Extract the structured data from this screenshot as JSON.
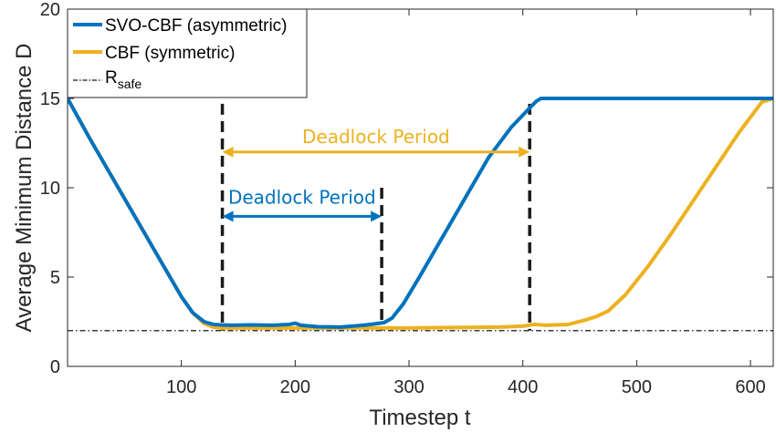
{
  "chart_data": {
    "type": "line",
    "xlabel": "Timestep t",
    "ylabel": "Average Minimum Distance D",
    "xlim": [
      0,
      620
    ],
    "ylim": [
      0,
      20
    ],
    "xticks": [
      100,
      200,
      300,
      400,
      500,
      600
    ],
    "yticks": [
      0,
      5,
      10,
      15,
      20
    ],
    "grid": false,
    "legend_position": "top-left",
    "colors": {
      "svo": "#0072BD",
      "cbf": "#EDB120",
      "rsafe": "#3a3a3a",
      "markers": "#1a1a1a"
    },
    "series": [
      {
        "name": "SVO-CBF (asymmetric)",
        "x": [
          0,
          20,
          40,
          60,
          80,
          100,
          110,
          120,
          128,
          135,
          145,
          160,
          180,
          195,
          200,
          205,
          220,
          240,
          260,
          270,
          278,
          285,
          295,
          310,
          330,
          350,
          370,
          390,
          405,
          412,
          416,
          420,
          440,
          500,
          560,
          600,
          620
        ],
        "y": [
          15,
          12.7,
          10.5,
          8.3,
          6.1,
          3.9,
          3.0,
          2.5,
          2.35,
          2.32,
          2.3,
          2.32,
          2.3,
          2.35,
          2.42,
          2.3,
          2.22,
          2.2,
          2.3,
          2.38,
          2.45,
          2.7,
          3.5,
          5.1,
          7.3,
          9.5,
          11.7,
          13.4,
          14.4,
          14.85,
          15,
          15,
          15,
          15,
          15,
          15,
          15
        ]
      },
      {
        "name": "CBF (symmetric)",
        "x": [
          0,
          20,
          40,
          60,
          80,
          100,
          110,
          120,
          128,
          135,
          150,
          200,
          250,
          300,
          350,
          380,
          400,
          410,
          420,
          440,
          455,
          465,
          475,
          490,
          510,
          530,
          550,
          570,
          590,
          610,
          620
        ],
        "y": [
          15,
          12.7,
          10.5,
          8.3,
          6.1,
          3.9,
          3.0,
          2.4,
          2.2,
          2.15,
          2.15,
          2.15,
          2.15,
          2.15,
          2.18,
          2.2,
          2.25,
          2.35,
          2.3,
          2.35,
          2.6,
          2.8,
          3.1,
          4.0,
          5.6,
          7.4,
          9.3,
          11.2,
          13.1,
          14.8,
          15
        ]
      }
    ],
    "reference_line": {
      "label": "R",
      "label_sub": "safe",
      "y": 2
    },
    "vertical_markers": [
      136,
      276,
      406
    ],
    "annotations": [
      {
        "text": "Deadlock Period",
        "x_start": 136,
        "x_end": 406,
        "arrow_y": 12,
        "color": "#EDB120"
      },
      {
        "text": "Deadlock Period",
        "x_start": 136,
        "x_end": 276,
        "arrow_y": 8.4,
        "color": "#0072BD"
      }
    ],
    "legend": [
      {
        "label": "SVO-CBF (asymmetric)"
      },
      {
        "label": "CBF (symmetric)"
      },
      {
        "label": "R",
        "label_sub": "safe"
      }
    ]
  }
}
